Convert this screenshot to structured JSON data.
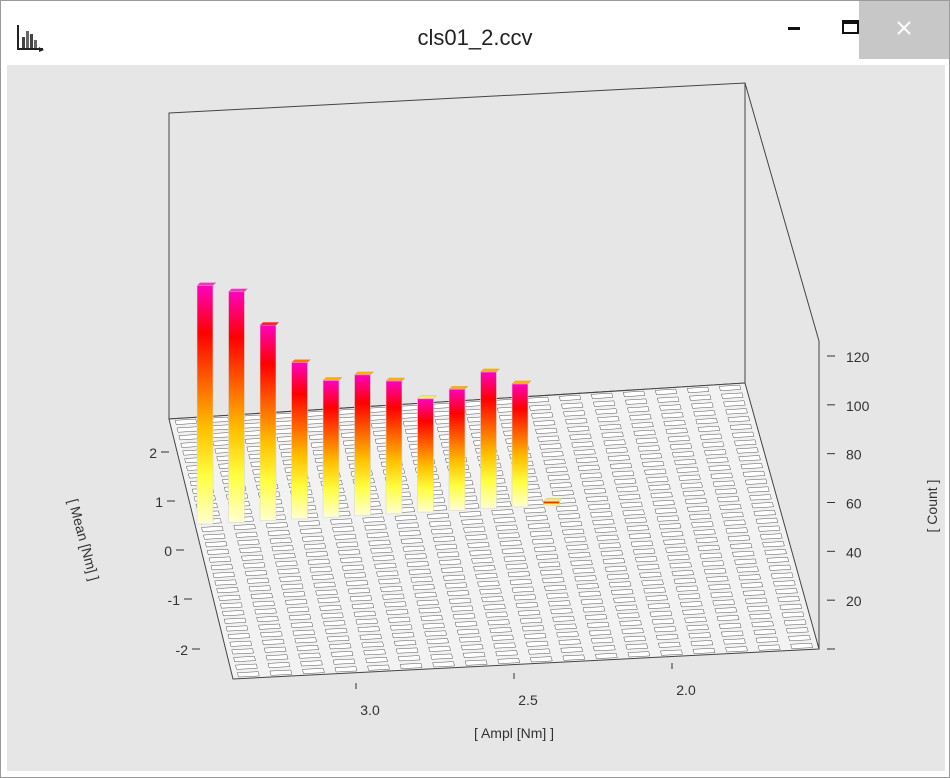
{
  "window": {
    "title": "cls01_2.ccv",
    "icons": {
      "app": "histogram-app-icon",
      "minimize": "minimize-icon",
      "maximize": "maximize-icon",
      "close": "close-icon"
    }
  },
  "chart_data": {
    "type": "bar",
    "subtype": "3d-histogram",
    "xlabel": "[ Ampl [Nm] ]",
    "ylabel": "[ Mean [Nm] ]",
    "zlabel": "[ Count ]",
    "x_ticks": [
      "3.0",
      "2.5",
      "2.0"
    ],
    "y_ticks": [
      "2",
      "1",
      "0",
      "-1",
      "-2"
    ],
    "z_ticks": [
      "20",
      "40",
      "60",
      "80",
      "100",
      "120"
    ],
    "zlim": [
      0,
      130
    ],
    "grid": true,
    "colors": [
      "#ffffd0",
      "#ffff40",
      "#ffc000",
      "#ff6000",
      "#ff0000",
      "#ff00c0"
    ],
    "series": [
      {
        "values": [
          122,
          118,
          100,
          80,
          70,
          72,
          68,
          58,
          62,
          70,
          63,
          2
        ]
      }
    ]
  }
}
